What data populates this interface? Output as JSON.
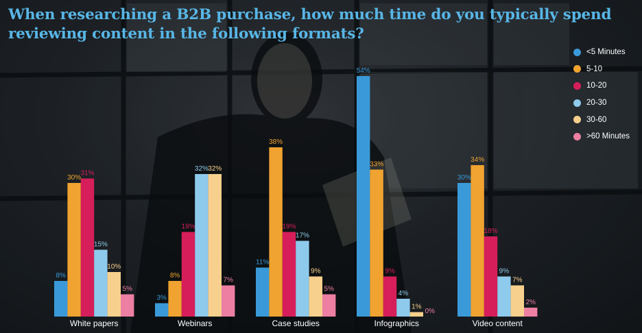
{
  "chart_data": {
    "type": "bar",
    "title": "When researching a B2B purchase, how much time do you typically spend reviewing content in the following formats?",
    "categories": [
      "White papers",
      "Webinars",
      "Case studies",
      "Infographics",
      "Video content"
    ],
    "series": [
      {
        "name": "<5 Minutes",
        "color": "#3a9ad9",
        "values": [
          8,
          3,
          11,
          54,
          30
        ]
      },
      {
        "name": "5-10",
        "color": "#f0a330",
        "values": [
          30,
          8,
          38,
          33,
          34
        ]
      },
      {
        "name": "10-20",
        "color": "#d61f5a",
        "values": [
          31,
          19,
          19,
          9,
          18
        ]
      },
      {
        "name": "20-30",
        "color": "#8ecaec",
        "values": [
          15,
          32,
          17,
          4,
          9
        ]
      },
      {
        "name": "30-60",
        "color": "#f7d08d",
        "values": [
          10,
          32,
          9,
          1,
          7
        ]
      },
      {
        "name": ">60 Minutes",
        "color": "#ec7fa2",
        "values": [
          5,
          7,
          5,
          0,
          2
        ]
      }
    ],
    "value_suffix": "%",
    "legend_position": "right",
    "grid": false
  }
}
